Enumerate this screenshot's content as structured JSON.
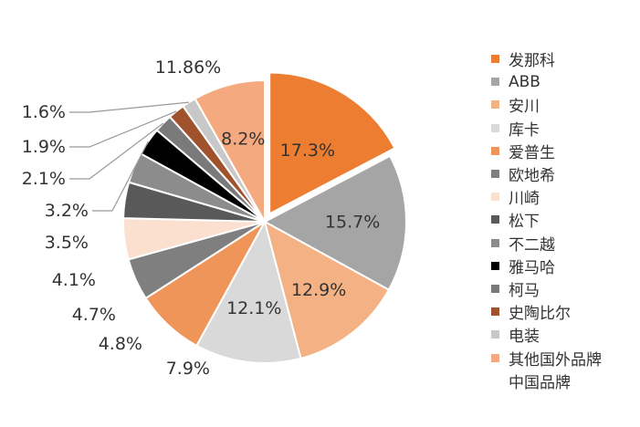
{
  "chart_data": {
    "type": "pie",
    "title": "",
    "slices": [
      {
        "label": "发那科",
        "value": 17.3,
        "display": "17.3%",
        "color": "#ED7D31"
      },
      {
        "label": "ABB",
        "value": 15.7,
        "display": "15.7%",
        "color": "#A5A5A5"
      },
      {
        "label": "安川",
        "value": 12.9,
        "display": "12.9%",
        "color": "#F4B183"
      },
      {
        "label": "库卡",
        "value": 12.1,
        "display": "12.1%",
        "color": "#D9D9D9"
      },
      {
        "label": "爱普生",
        "value": 7.9,
        "display": "7.9%",
        "color": "#F0955A"
      },
      {
        "label": "欧地希",
        "value": 4.8,
        "display": "4.8%",
        "color": "#7F7F7F"
      },
      {
        "label": "川崎",
        "value": 4.7,
        "display": "4.7%",
        "color": "#FBE0D0"
      },
      {
        "label": "松下",
        "value": 4.1,
        "display": "4.1%",
        "color": "#595959"
      },
      {
        "label": "不二越",
        "value": 3.5,
        "display": "3.5%",
        "color": "#8C8C8C"
      },
      {
        "label": "雅马哈",
        "value": 3.2,
        "display": "3.2%",
        "color": "#000000"
      },
      {
        "label": "柯马",
        "value": 2.1,
        "display": "2.1%",
        "color": "#7A7A7A"
      },
      {
        "label": "史陶比尔",
        "value": 1.9,
        "display": "1.9%",
        "color": "#A0522D"
      },
      {
        "label": "电装",
        "value": 1.6,
        "display": "1.6%",
        "color": "#C8C8C8"
      },
      {
        "label": "其他国外品牌",
        "value": 8.2,
        "display": "8.2%",
        "color": "#F4A97E"
      }
    ],
    "extra_labels": [
      "11.86%"
    ],
    "legend": {
      "placement": "right",
      "items": [
        {
          "label": "发那科",
          "color": "#ED7D31"
        },
        {
          "label": "ABB",
          "color": "#A5A5A5"
        },
        {
          "label": "安川",
          "color": "#F4B183"
        },
        {
          "label": "库卡",
          "color": "#D9D9D9"
        },
        {
          "label": "爱普生",
          "color": "#F0955A"
        },
        {
          "label": "欧地希",
          "color": "#7F7F7F"
        },
        {
          "label": "川崎",
          "color": "#FBE0D0"
        },
        {
          "label": "松下",
          "color": "#595959"
        },
        {
          "label": "不二越",
          "color": "#8C8C8C"
        },
        {
          "label": "雅马哈",
          "color": "#000000"
        },
        {
          "label": "柯马",
          "color": "#7A7A7A"
        },
        {
          "label": "史陶比尔",
          "color": "#A0522D"
        },
        {
          "label": "电装",
          "color": "#C8C8C8"
        },
        {
          "label": "其他国外品牌",
          "color": "#F4A97E"
        },
        {
          "label": "中国品牌",
          "color": ""
        }
      ]
    }
  }
}
